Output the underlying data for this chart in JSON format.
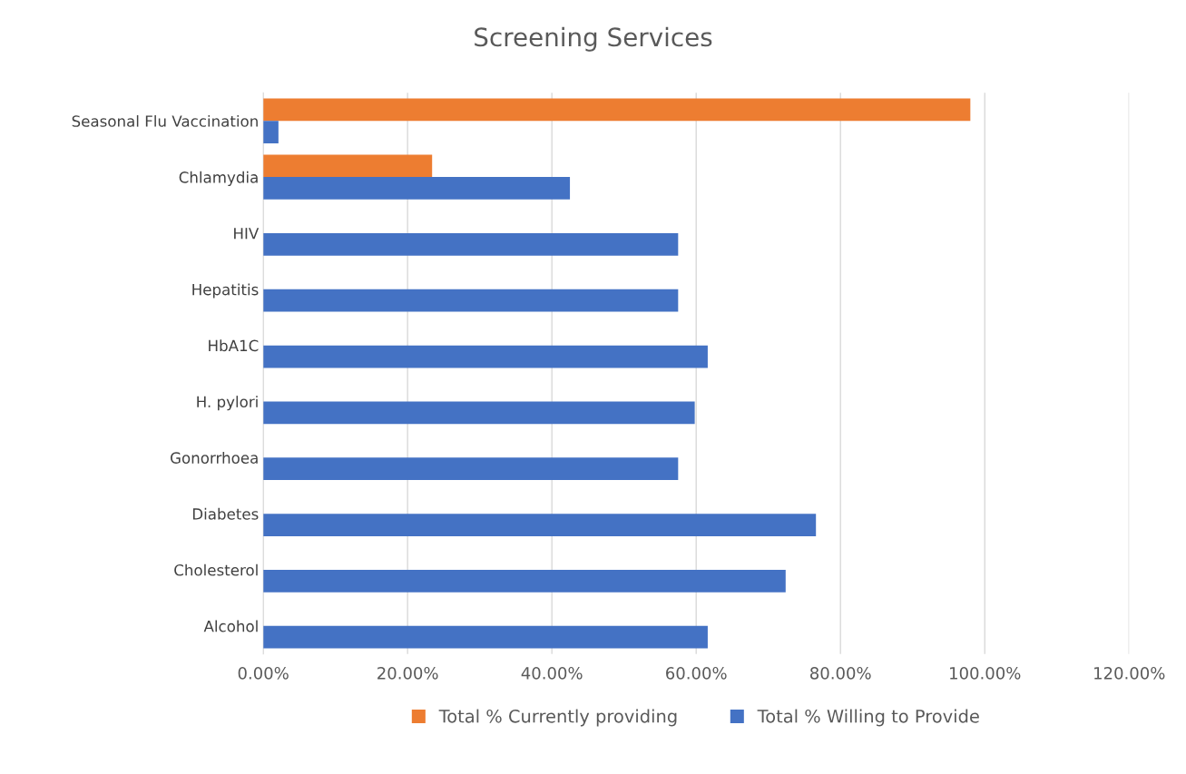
{
  "chart_data": {
    "type": "bar",
    "orientation": "horizontal",
    "title": "Screening Services",
    "categories": [
      "Seasonal Flu Vaccination",
      "Chlamydia",
      "HIV",
      "Hepatitis",
      "HbA1C",
      "H. pylori",
      "Gonorrhoea",
      "Diabetes",
      "Cholesterol",
      "Alcohol"
    ],
    "series": [
      {
        "name": "Total % Currently providing",
        "color": "#ed7d31",
        "values": [
          98.0,
          23.4,
          null,
          null,
          null,
          null,
          null,
          null,
          null,
          null
        ]
      },
      {
        "name": "Total % Willing to Provide",
        "color": "#4472c4",
        "values": [
          2.1,
          42.5,
          57.5,
          57.5,
          61.6,
          59.8,
          57.5,
          76.6,
          72.4,
          61.6
        ]
      }
    ],
    "xlim": [
      0,
      120
    ],
    "xticks": [
      {
        "value": 0,
        "label": "0.00%"
      },
      {
        "value": 20,
        "label": "20.00%"
      },
      {
        "value": 40,
        "label": "40.00%"
      },
      {
        "value": 60,
        "label": "60.00%"
      },
      {
        "value": 80,
        "label": "80.00%"
      },
      {
        "value": 100,
        "label": "100.00%"
      },
      {
        "value": 120,
        "label": "120.00%"
      }
    ],
    "grid": "x",
    "legend": "bottom"
  }
}
